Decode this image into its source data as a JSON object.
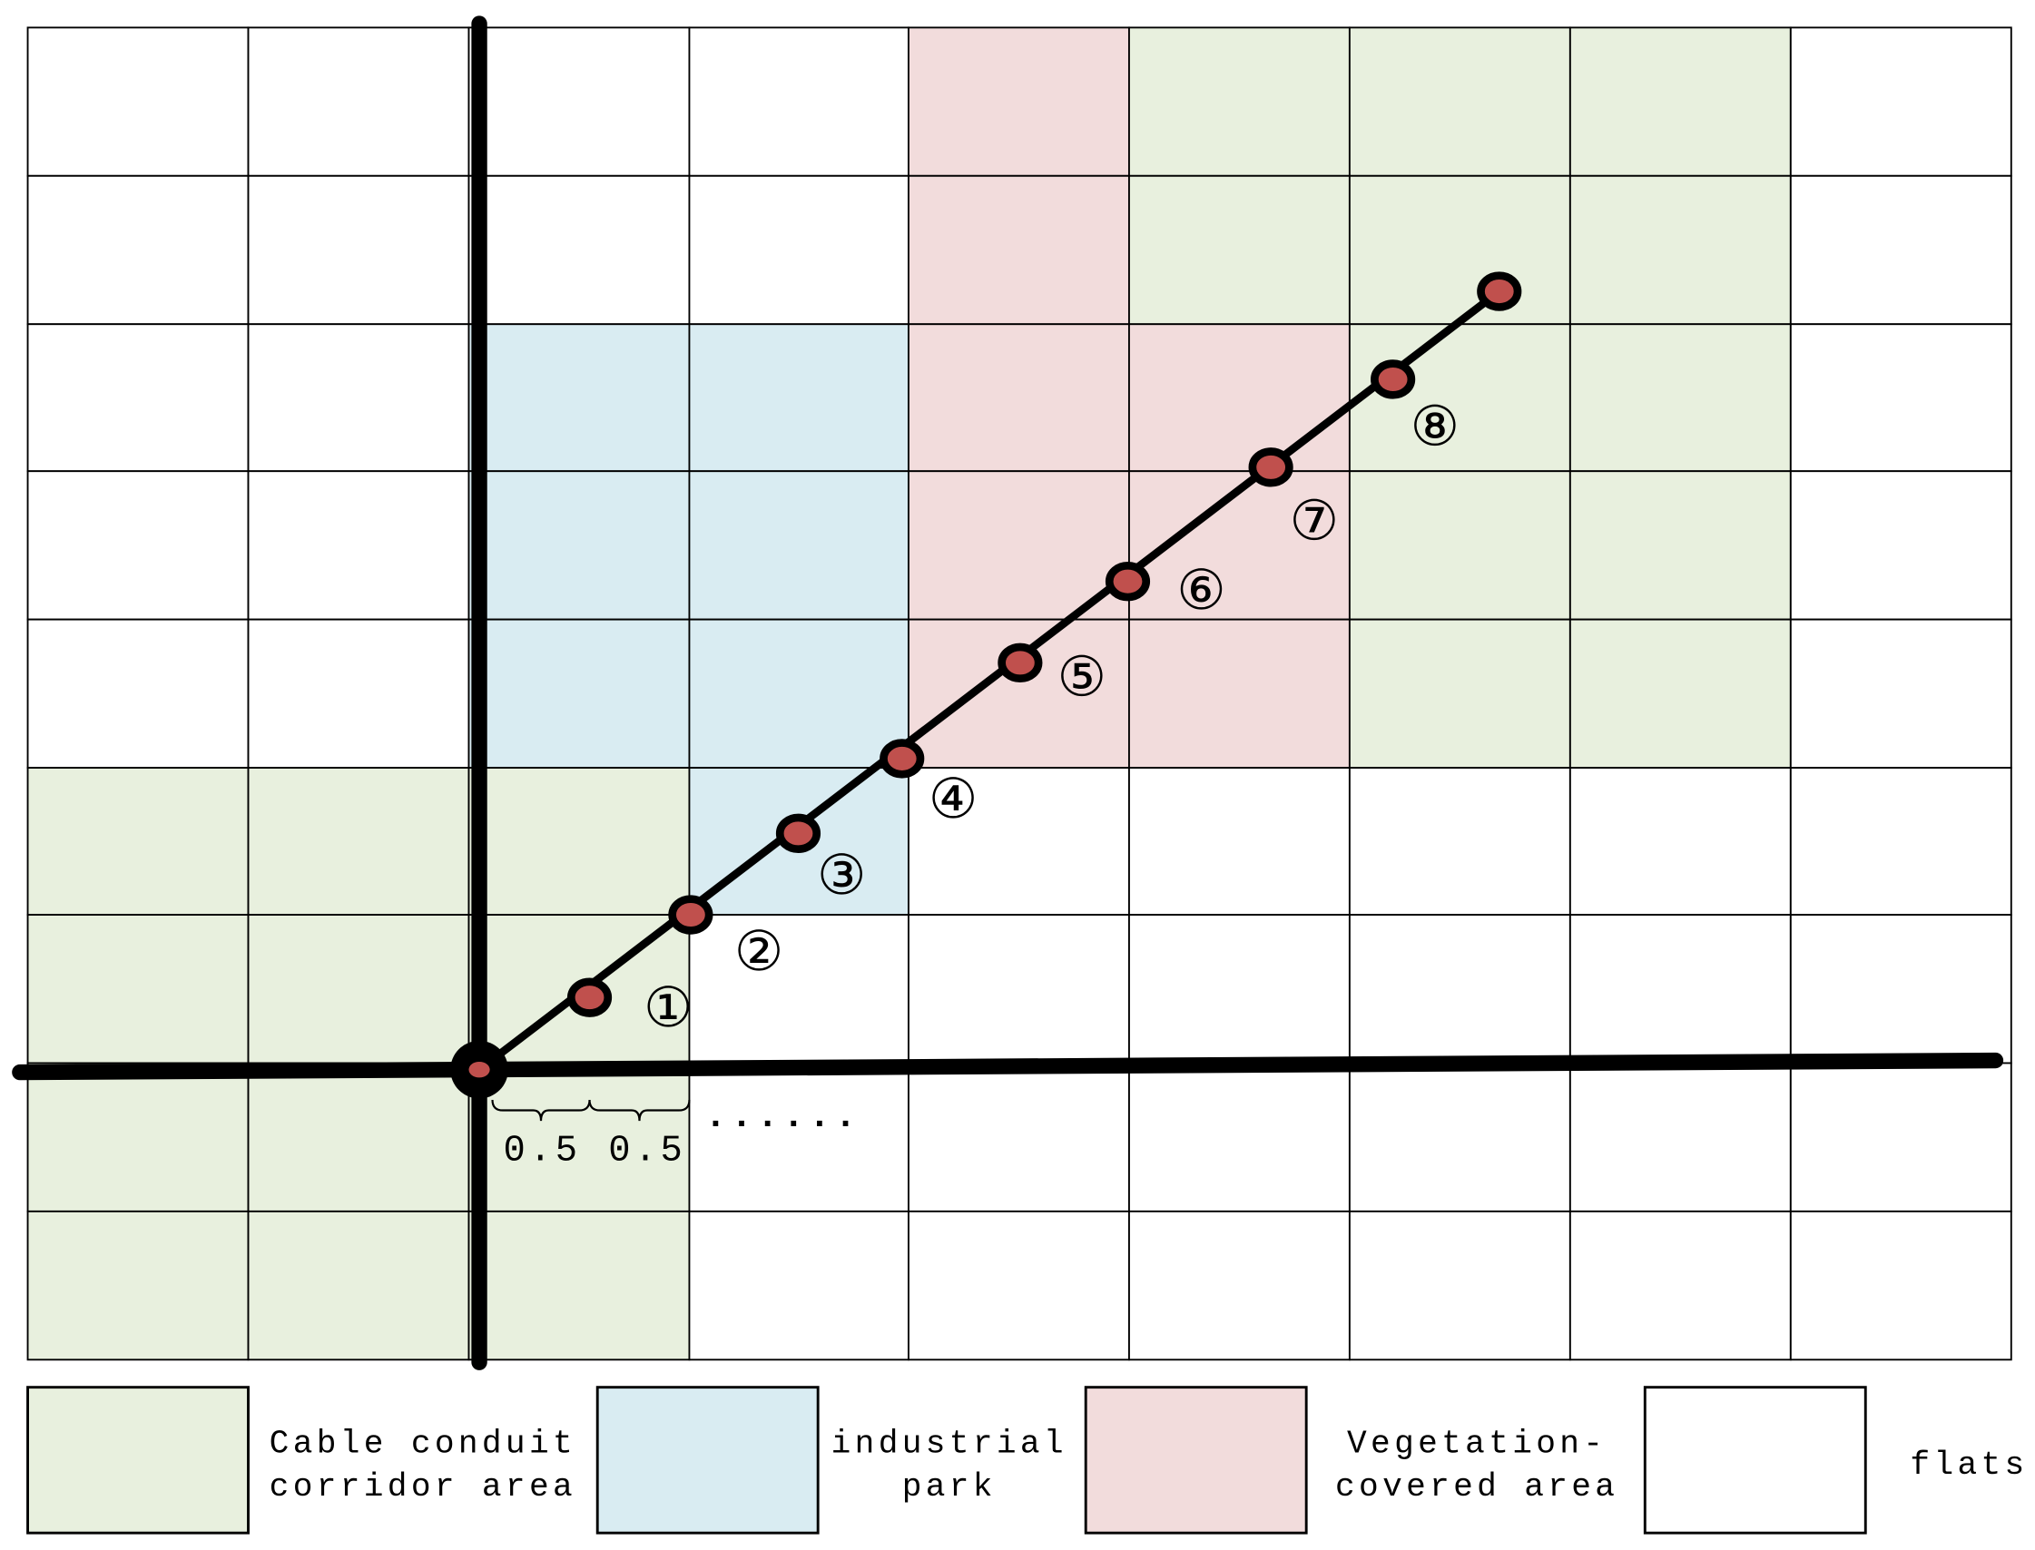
{
  "legend": [
    {
      "lines": [
        "Cable conduit",
        "corridor area"
      ]
    },
    {
      "lines": [
        "industrial",
        "park"
      ]
    },
    {
      "lines": [
        "Vegetation-",
        "covered area"
      ]
    },
    {
      "lines": [
        "flats"
      ]
    }
  ],
  "points": [
    "①",
    "②",
    "③",
    "④",
    "⑤",
    "⑥",
    "⑦",
    "⑧"
  ],
  "scale": {
    "labels": [
      "0.5",
      "0.5"
    ],
    "ellipsis": "......"
  }
}
